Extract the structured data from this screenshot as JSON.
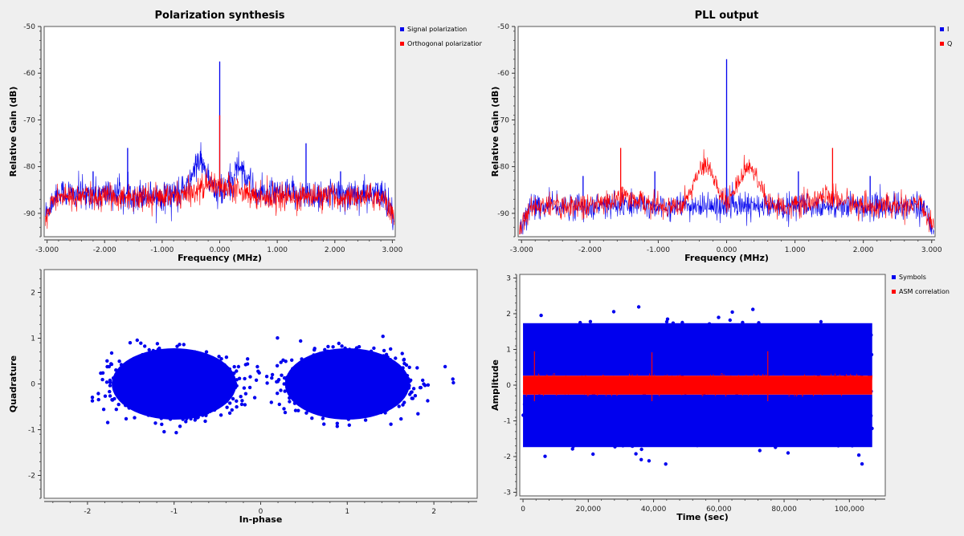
{
  "charts": [
    {
      "type": "line",
      "title": "Polarization synthesis",
      "xlabel": "Frequency (MHz)",
      "ylabel": "Relative Gain (dB)",
      "xlim": [
        -3.05,
        3.05
      ],
      "ylim": [
        -95,
        -50
      ],
      "xticks": [
        -3,
        -2,
        -1,
        0,
        1,
        2,
        3
      ],
      "xtick_labels": [
        "-3.000",
        "-2.000",
        "-1.000",
        "0.000",
        "1.000",
        "2.000",
        "3.000"
      ],
      "yticks": [
        -90,
        -80,
        -70,
        -60,
        -50
      ],
      "ytick_labels": [
        "-90",
        "-80",
        "-70",
        "-60",
        "-50"
      ],
      "legend_position": "top-right",
      "series": [
        {
          "name": "Signal polarization",
          "color": "#0000ee",
          "baseline": -86,
          "noise": 2.2,
          "bumps": [
            [
              -0.35,
              -79,
              0.18
            ],
            [
              0.35,
              -80,
              0.18
            ]
          ],
          "spikes": [
            [
              0.0,
              -57.5
            ],
            [
              -1.6,
              -76
            ],
            [
              1.5,
              -75
            ],
            [
              -2.2,
              -81
            ],
            [
              2.1,
              -81
            ]
          ]
        },
        {
          "name": "Orthogonal polarization",
          "color": "#ff0000",
          "baseline": -86.5,
          "noise": 1.8,
          "bumps": [
            [
              -0.15,
              -84,
              0.35
            ],
            [
              0.15,
              -84,
              0.35
            ]
          ],
          "spikes": [
            [
              0.0,
              -69
            ]
          ]
        }
      ]
    },
    {
      "type": "line",
      "title": "PLL output",
      "xlabel": "Frequency (MHz)",
      "ylabel": "Relative Gain (dB)",
      "xlim": [
        -3.05,
        3.05
      ],
      "ylim": [
        -95,
        -50
      ],
      "xticks": [
        -3,
        -2,
        -1,
        0,
        1,
        2,
        3
      ],
      "xtick_labels": [
        "-3.000",
        "-2.000",
        "-1.000",
        "0.000",
        "1.000",
        "2.000",
        "3.000"
      ],
      "yticks": [
        -90,
        -80,
        -70,
        -60,
        -50
      ],
      "ytick_labels": [
        "-90",
        "-80",
        "-70",
        "-60",
        "-50"
      ],
      "legend_position": "top-right",
      "series": [
        {
          "name": "I",
          "color": "#0000ee",
          "baseline": -88.5,
          "noise": 1.8,
          "bumps": [],
          "spikes": [
            [
              0.0,
              -57
            ],
            [
              -2.1,
              -82
            ],
            [
              2.1,
              -82
            ],
            [
              -1.05,
              -81
            ],
            [
              1.05,
              -81
            ]
          ]
        },
        {
          "name": "Q",
          "color": "#ff0000",
          "baseline": -88.5,
          "noise": 1.6,
          "bumps": [
            [
              -0.32,
              -80,
              0.22
            ],
            [
              0.32,
              -80,
              0.22
            ],
            [
              -1.5,
              -86.5,
              0.3
            ],
            [
              1.5,
              -86.5,
              0.3
            ]
          ],
          "spikes": [
            [
              -1.55,
              -76
            ],
            [
              1.55,
              -76
            ]
          ]
        }
      ]
    },
    {
      "type": "scatter",
      "title": "",
      "xlabel": "In-phase",
      "ylabel": "Quadrature",
      "xlim": [
        -2.5,
        2.5
      ],
      "ylim": [
        -2.5,
        2.5
      ],
      "xticks": [
        -2,
        -1,
        0,
        1,
        2
      ],
      "xtick_labels": [
        "-2",
        "-1",
        "0",
        "1",
        "2"
      ],
      "yticks": [
        -2,
        -1,
        0,
        1,
        2
      ],
      "ytick_labels": [
        "-2",
        "-1",
        "0",
        "1",
        "2"
      ],
      "clusters": [
        {
          "center": [
            -1.0,
            0.0
          ],
          "spread": [
            0.36,
            0.3
          ],
          "color": "#0000ee"
        },
        {
          "center": [
            1.0,
            0.0
          ],
          "spread": [
            0.36,
            0.3
          ],
          "color": "#0000ee"
        }
      ]
    },
    {
      "type": "scatter",
      "title": "",
      "xlabel": "Time (sec)",
      "ylabel": "Amplitude",
      "xlim": [
        -1000,
        111000
      ],
      "ylim": [
        -3.1,
        3.1
      ],
      "xticks": [
        0,
        20000,
        40000,
        60000,
        80000,
        100000
      ],
      "xtick_labels": [
        "0",
        "20,000",
        "40,000",
        "60,000",
        "80,000",
        "100,000"
      ],
      "yticks": [
        -3,
        -2,
        -1,
        0,
        1,
        2,
        3
      ],
      "ytick_labels": [
        "-3",
        "-2",
        "-1",
        "0",
        "1",
        "2",
        "3"
      ],
      "legend_position": "top-right",
      "series": [
        {
          "name": "Symbols",
          "color": "#0000ee",
          "levels": [
            1.0,
            -1.0
          ],
          "spread": 0.35,
          "x_range": [
            0,
            107000
          ]
        },
        {
          "name": "ASM correlation",
          "color": "#ff0000",
          "center": 0.0,
          "spread": 0.12,
          "x_range": [
            0,
            107000
          ],
          "spikes": [
            [
              3500,
              0.95
            ],
            [
              39500,
              0.92
            ],
            [
              75000,
              0.95
            ]
          ]
        }
      ]
    }
  ]
}
